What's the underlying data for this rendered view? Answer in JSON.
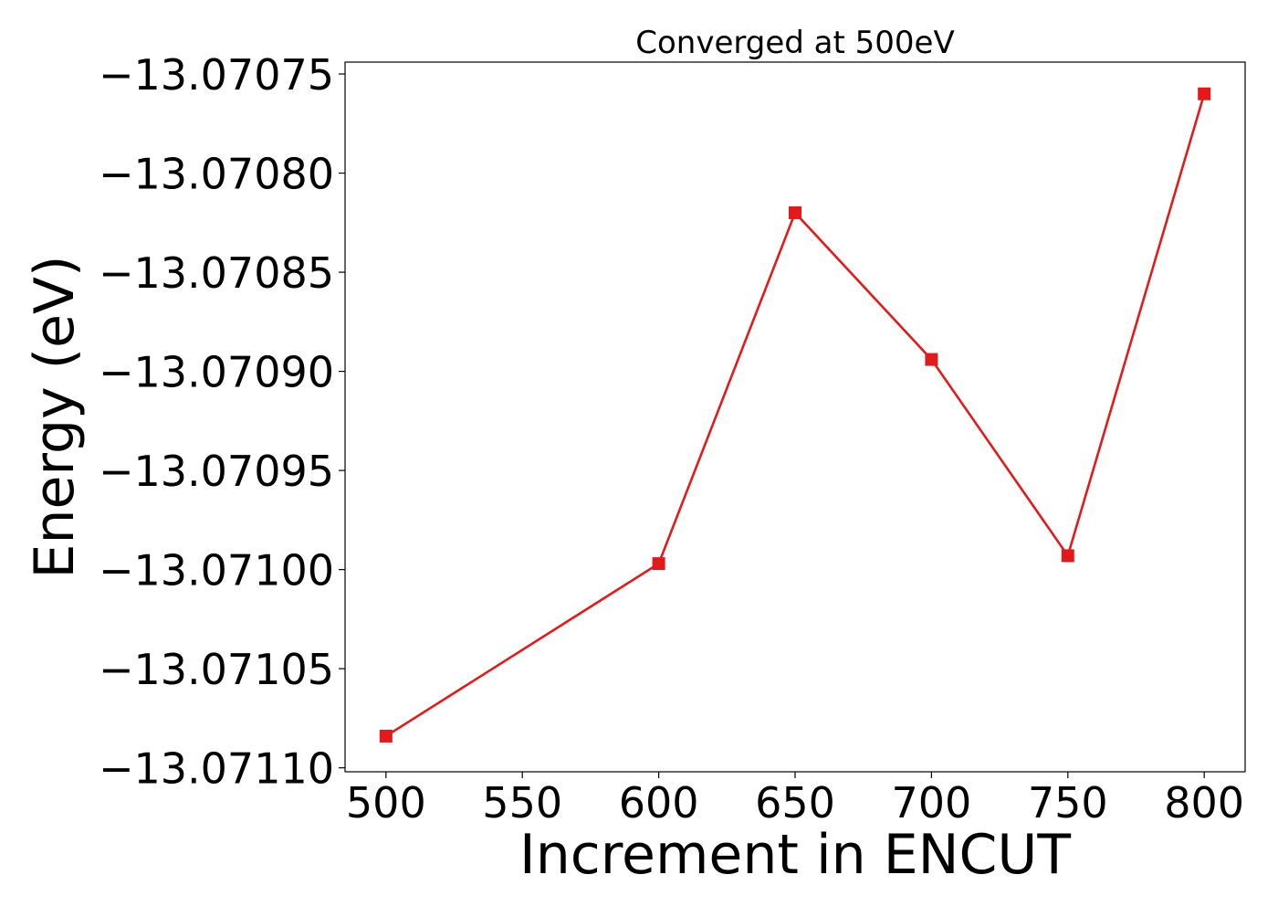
{
  "chart_data": {
    "type": "line",
    "title": "Converged at 500eV",
    "xlabel": "Increment in ENCUT",
    "ylabel": "Energy (eV)",
    "x": [
      500,
      600,
      650,
      700,
      750,
      800
    ],
    "series": [
      {
        "values": [
          -13.071084,
          -13.070997,
          -13.07082,
          -13.070894,
          -13.070993,
          -13.07076
        ],
        "color": "#e31a1c",
        "marker": "square"
      }
    ],
    "xlim": [
      485,
      815
    ],
    "ylim": [
      -13.071102,
      -13.070744
    ],
    "xticks": [
      500,
      550,
      600,
      650,
      700,
      750,
      800
    ],
    "xtick_labels": [
      "500",
      "550",
      "600",
      "650",
      "700",
      "750",
      "800"
    ],
    "yticks": [
      -13.0711,
      -13.07105,
      -13.071,
      -13.07095,
      -13.0709,
      -13.07085,
      -13.0708,
      -13.07075
    ],
    "ytick_labels": [
      "−13.07110",
      "−13.07105",
      "−13.07100",
      "−13.07095",
      "−13.07090",
      "−13.07085",
      "−13.07080",
      "−13.07075"
    ],
    "grid": false,
    "legend": "none"
  }
}
